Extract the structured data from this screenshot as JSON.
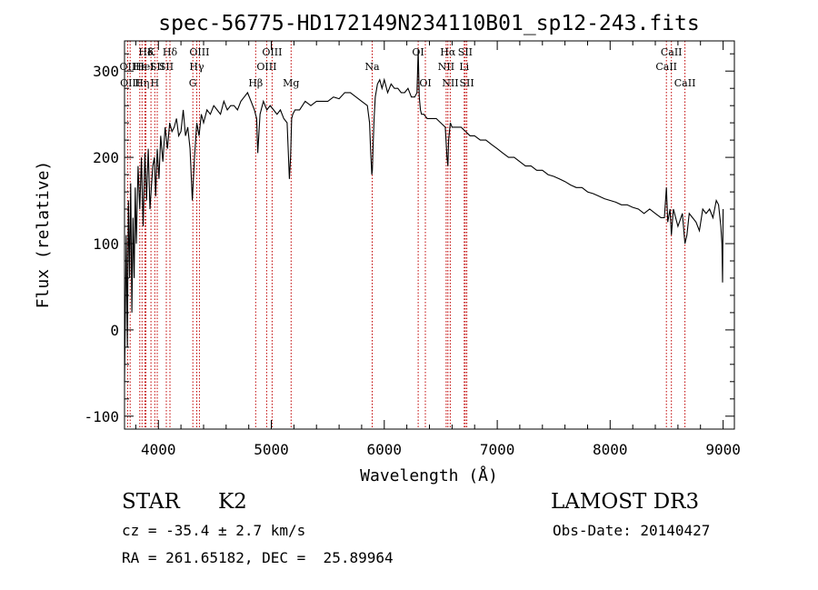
{
  "chart_data": {
    "type": "line",
    "title": "spec-56775-HD172149N234110B01_sp12-243.fits",
    "xlabel": "Wavelength (Å)",
    "ylabel": "Flux (relative)",
    "xlim": [
      3700,
      9100
    ],
    "ylim": [
      -115,
      335
    ],
    "x_ticks": [
      4000,
      5000,
      6000,
      7000,
      8000,
      9000
    ],
    "y_ticks": [
      -100,
      0,
      100,
      200,
      300
    ],
    "line_color": "#000000",
    "marker_color": "#c00000",
    "series": [
      {
        "name": "flux",
        "x": [
          3700,
          3715,
          3725,
          3735,
          3745,
          3755,
          3765,
          3775,
          3785,
          3795,
          3805,
          3820,
          3835,
          3850,
          3865,
          3880,
          3895,
          3910,
          3925,
          3935,
          3950,
          3965,
          3975,
          3990,
          4005,
          4020,
          4040,
          4060,
          4080,
          4100,
          4120,
          4140,
          4160,
          4180,
          4200,
          4220,
          4240,
          4260,
          4280,
          4300,
          4320,
          4340,
          4360,
          4380,
          4400,
          4430,
          4460,
          4490,
          4520,
          4550,
          4580,
          4610,
          4640,
          4670,
          4700,
          4730,
          4760,
          4790,
          4820,
          4850,
          4870,
          4880,
          4900,
          4930,
          4960,
          4990,
          5020,
          5050,
          5080,
          5110,
          5140,
          5160,
          5170,
          5180,
          5190,
          5210,
          5250,
          5300,
          5350,
          5400,
          5450,
          5500,
          5550,
          5600,
          5650,
          5700,
          5750,
          5800,
          5850,
          5870,
          5880,
          5890,
          5895,
          5900,
          5910,
          5920,
          5940,
          5960,
          5980,
          6000,
          6030,
          6060,
          6090,
          6120,
          6150,
          6180,
          6210,
          6240,
          6270,
          6290,
          6300,
          6310,
          6320,
          6330,
          6350,
          6380,
          6420,
          6460,
          6500,
          6540,
          6555,
          6563,
          6570,
          6585,
          6600,
          6640,
          6680,
          6720,
          6760,
          6800,
          6850,
          6900,
          6950,
          7000,
          7050,
          7100,
          7150,
          7200,
          7250,
          7300,
          7350,
          7400,
          7450,
          7500,
          7550,
          7600,
          7650,
          7700,
          7750,
          7800,
          7850,
          7900,
          7950,
          8000,
          8050,
          8100,
          8150,
          8200,
          8250,
          8300,
          8350,
          8400,
          8450,
          8480,
          8498,
          8510,
          8530,
          8542,
          8560,
          8600,
          8640,
          8662,
          8680,
          8700,
          8730,
          8760,
          8790,
          8820,
          8850,
          8880,
          8910,
          8940,
          8960,
          8980,
          8990,
          8995,
          9000
        ],
        "values": [
          -60,
          110,
          -20,
          150,
          60,
          170,
          20,
          130,
          60,
          165,
          100,
          190,
          140,
          200,
          120,
          205,
          150,
          210,
          140,
          160,
          190,
          200,
          155,
          210,
          175,
          225,
          195,
          235,
          210,
          240,
          230,
          235,
          245,
          225,
          230,
          255,
          225,
          235,
          210,
          150,
          200,
          240,
          225,
          250,
          240,
          255,
          250,
          260,
          255,
          250,
          265,
          255,
          260,
          260,
          255,
          265,
          270,
          275,
          265,
          255,
          245,
          205,
          250,
          265,
          255,
          260,
          255,
          250,
          255,
          245,
          240,
          175,
          200,
          245,
          250,
          255,
          255,
          265,
          260,
          265,
          265,
          265,
          270,
          268,
          275,
          275,
          270,
          265,
          260,
          240,
          205,
          180,
          185,
          210,
          245,
          270,
          285,
          290,
          280,
          290,
          275,
          285,
          280,
          280,
          275,
          275,
          280,
          270,
          270,
          275,
          325,
          270,
          255,
          250,
          250,
          245,
          245,
          245,
          240,
          235,
          200,
          190,
          220,
          240,
          235,
          235,
          235,
          230,
          225,
          225,
          220,
          220,
          215,
          210,
          205,
          200,
          200,
          195,
          190,
          190,
          185,
          185,
          180,
          178,
          175,
          172,
          168,
          165,
          165,
          160,
          158,
          155,
          152,
          150,
          148,
          145,
          145,
          142,
          140,
          135,
          140,
          135,
          130,
          130,
          165,
          125,
          140,
          110,
          140,
          120,
          135,
          100,
          110,
          135,
          130,
          125,
          115,
          140,
          135,
          140,
          130,
          150,
          145,
          120,
          100,
          55,
          140
        ]
      }
    ],
    "line_labels": [
      {
        "label": "Hδ",
        "lambda": 3889,
        "row": 1
      },
      {
        "label": "OII",
        "lambda": 3727,
        "row": 2
      },
      {
        "label": "Hε",
        "lambda": 3835,
        "row": 2
      },
      {
        "label": "OIII",
        "lambda": 3750,
        "row": 3
      },
      {
        "label": "Hη",
        "lambda": 3855,
        "row": 3
      },
      {
        "label": "K",
        "lambda": 3934,
        "row": 1
      },
      {
        "label": "HeI",
        "lambda": 3880,
        "row": 2
      },
      {
        "label": "SII",
        "lambda": 3990,
        "row": 2
      },
      {
        "label": "H",
        "lambda": 3968,
        "row": 3
      },
      {
        "label": "Hδ",
        "lambda": 4102,
        "row": 1
      },
      {
        "label": "SII",
        "lambda": 4070,
        "row": 2
      },
      {
        "label": "OIII",
        "lambda": 4363,
        "row": 1
      },
      {
        "label": "Hγ",
        "lambda": 4340,
        "row": 2
      },
      {
        "label": "G",
        "lambda": 4305,
        "row": 3
      },
      {
        "label": "Hβ",
        "lambda": 4861,
        "row": 3
      },
      {
        "label": "OIII",
        "lambda": 5007,
        "row": 1
      },
      {
        "label": "OIII",
        "lambda": 4959,
        "row": 2
      },
      {
        "label": "Mg",
        "lambda": 5175,
        "row": 3
      },
      {
        "label": "Na",
        "lambda": 5893,
        "row": 2
      },
      {
        "label": "OI",
        "lambda": 6300,
        "row": 1
      },
      {
        "label": "OI",
        "lambda": 6364,
        "row": 3
      },
      {
        "label": "Hα",
        "lambda": 6563,
        "row": 1
      },
      {
        "label": "NII",
        "lambda": 6548,
        "row": 2
      },
      {
        "label": "NII",
        "lambda": 6584,
        "row": 3
      },
      {
        "label": "SII",
        "lambda": 6717,
        "row": 1
      },
      {
        "label": "Li",
        "lambda": 6708,
        "row": 2
      },
      {
        "label": "SII",
        "lambda": 6731,
        "row": 3
      },
      {
        "label": "CaII",
        "lambda": 8542,
        "row": 1
      },
      {
        "label": "CaII",
        "lambda": 8498,
        "row": 2
      },
      {
        "label": "CaII",
        "lambda": 8662,
        "row": 3
      }
    ],
    "marker_lines": [
      3727,
      3750,
      3835,
      3855,
      3880,
      3889,
      3934,
      3968,
      3990,
      4070,
      4102,
      4305,
      4340,
      4363,
      4861,
      4959,
      5007,
      5175,
      5893,
      6300,
      6364,
      6548,
      6563,
      6584,
      6708,
      6717,
      6731,
      8498,
      8542,
      8662
    ]
  },
  "info": {
    "object_type": "STAR",
    "subclass": "K2",
    "survey": "LAMOST DR3",
    "cz": "cz = -35.4 ± 2.7 km/s",
    "obs_date": "Obs-Date: 20140427",
    "coords": "RA = 261.65182, DEC =  25.89964"
  }
}
